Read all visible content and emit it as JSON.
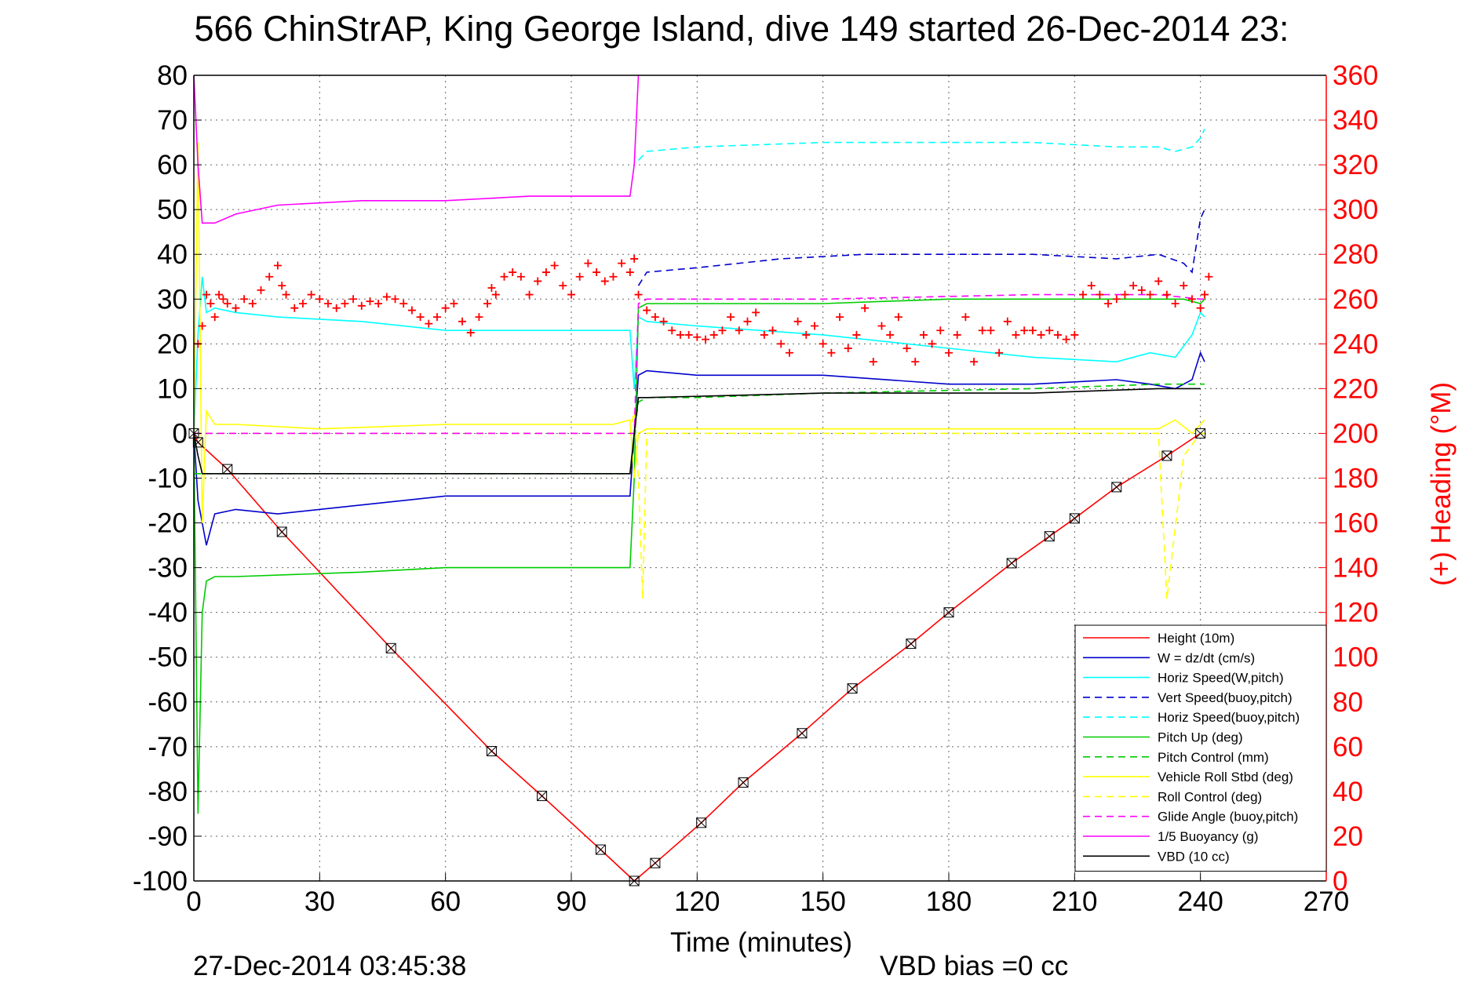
{
  "chart_data": {
    "type": "line",
    "title": "566 ChinStrAP, King George Island, dive 149 started 26-Dec-2014 23:",
    "xlabel": "Time (minutes)",
    "ylabel_right": "(+) Heading (°M)",
    "footer_date": "27-Dec-2014 03:45:38",
    "footer_bias": "VBD bias =0 cc",
    "xlim": [
      0,
      270
    ],
    "ylim": [
      -100,
      80
    ],
    "y2lim": [
      0,
      360
    ],
    "grid": true,
    "legend_position": "lower-right",
    "x_ticks": [
      "0",
      "30",
      "60",
      "90",
      "120",
      "150",
      "180",
      "210",
      "240",
      "270"
    ],
    "y_ticks": [
      "80",
      "70",
      "60",
      "50",
      "40",
      "30",
      "20",
      "10",
      "0",
      "-10",
      "-20",
      "-30",
      "-40",
      "-50",
      "-60",
      "-70",
      "-80",
      "-90",
      "-100"
    ],
    "y2_ticks": [
      "360",
      "340",
      "320",
      "300",
      "280",
      "260",
      "240",
      "220",
      "200",
      "180",
      "160",
      "140",
      "120",
      "100",
      "80",
      "60",
      "40",
      "20",
      "0"
    ],
    "colors": {
      "right_axis": "#ff0000"
    },
    "series": [
      {
        "name": "Height (10m)",
        "color": "#ff0000",
        "style": "solid",
        "x": [
          0,
          1,
          8,
          21,
          47,
          71,
          83,
          97,
          105,
          110,
          121,
          131,
          145,
          157,
          171,
          180,
          195,
          204,
          210,
          220,
          232,
          240
        ],
        "y": [
          0,
          -2,
          -8,
          -22,
          -48,
          -71,
          -81,
          -93,
          -100,
          -96,
          -87,
          -78,
          -67,
          -57,
          -47,
          -40,
          -29,
          -23,
          -19,
          -12,
          -5,
          0
        ]
      },
      {
        "name": "W = dz/dt (cm/s)",
        "color": "#0000cc",
        "style": "solid",
        "x": [
          0,
          1,
          2,
          3,
          5,
          10,
          20,
          40,
          60,
          80,
          104,
          105,
          106,
          108,
          120,
          150,
          180,
          200,
          220,
          228,
          234,
          238,
          240,
          241
        ],
        "y": [
          0,
          -15,
          -20,
          -25,
          -18,
          -17,
          -18,
          -16,
          -14,
          -14,
          -14,
          0,
          13,
          14,
          13,
          13,
          11,
          11,
          12,
          11,
          10,
          12,
          18,
          16
        ]
      },
      {
        "name": "Horiz Speed(W,pitch)",
        "color": "#00ffff",
        "style": "solid",
        "x": [
          0,
          1,
          2,
          3,
          5,
          10,
          20,
          40,
          60,
          80,
          104,
          105,
          106,
          108,
          120,
          150,
          180,
          200,
          220,
          228,
          234,
          238,
          240,
          241
        ],
        "y": [
          0,
          22,
          35,
          27,
          28,
          27,
          26,
          25,
          23,
          23,
          23,
          10,
          26,
          25,
          24,
          22,
          19,
          17,
          16,
          18,
          17,
          22,
          27,
          26
        ]
      },
      {
        "name": "Vert Speed(buoy,pitch)",
        "color": "#0000cc",
        "style": "dashed",
        "x": [
          106,
          108,
          120,
          140,
          160,
          180,
          200,
          220,
          230,
          236,
          238,
          240,
          241
        ],
        "y": [
          33,
          36,
          37,
          39,
          40,
          40,
          40,
          39,
          40,
          38,
          36,
          48,
          50
        ]
      },
      {
        "name": "Horiz Speed(buoy,pitch)",
        "color": "#00ffff",
        "style": "dashed",
        "x": [
          106,
          108,
          120,
          150,
          180,
          200,
          220,
          230,
          234,
          238,
          240,
          241
        ],
        "y": [
          61,
          63,
          64,
          65,
          65,
          65,
          64,
          64,
          63,
          64,
          66,
          68
        ]
      },
      {
        "name": "Pitch Up (deg)",
        "color": "#00cc00",
        "style": "solid",
        "x": [
          0,
          1,
          2,
          3,
          5,
          10,
          40,
          60,
          80,
          104,
          105,
          106,
          108,
          120,
          150,
          180,
          200,
          220,
          230,
          236,
          240,
          241
        ],
        "y": [
          0,
          -85,
          -40,
          -33,
          -32,
          -32,
          -31,
          -30,
          -30,
          -30,
          -10,
          28,
          29,
          29,
          29,
          30,
          30,
          30,
          30,
          30,
          29,
          30
        ]
      },
      {
        "name": "Pitch Control (mm)",
        "color": "#00cc00",
        "style": "dashed",
        "x": [
          0,
          3,
          10,
          60,
          104,
          105,
          106,
          108,
          120,
          150,
          200,
          230,
          240,
          241
        ],
        "y": [
          -9,
          -9,
          -9,
          -9,
          -9,
          0,
          7,
          8,
          8,
          9,
          10,
          11,
          11,
          11
        ]
      },
      {
        "name": "Vehicle Roll Stbd (deg)",
        "color": "#ffff00",
        "style": "solid",
        "x": [
          0,
          1,
          2,
          3,
          5,
          10,
          30,
          60,
          100,
          104,
          105,
          106,
          108,
          120,
          150,
          200,
          230,
          234,
          238,
          240,
          241
        ],
        "y": [
          0,
          65,
          -20,
          5,
          2,
          2,
          1,
          2,
          2,
          3,
          -10,
          0,
          1,
          1,
          1,
          1,
          1,
          3,
          0,
          2,
          3
        ]
      },
      {
        "name": "Roll Control (deg)",
        "color": "#ffff00",
        "style": "dashed",
        "x": [
          0,
          3,
          104,
          105,
          106,
          107,
          108,
          120,
          160,
          200,
          230,
          232,
          236,
          240,
          241
        ],
        "y": [
          0,
          0,
          0,
          5,
          -10,
          -37,
          0,
          0,
          0,
          0,
          0,
          -37,
          -5,
          0,
          0
        ]
      },
      {
        "name": "Glide Angle (buoy,pitch)",
        "color": "#ff00ff",
        "style": "dashed",
        "x": [
          0,
          105,
          106,
          108,
          150,
          200,
          230,
          240,
          241
        ],
        "y": [
          0,
          0,
          29,
          30,
          30,
          31,
          31,
          30,
          30
        ]
      },
      {
        "name": "1/5 Buoyancy (g)",
        "color": "#ff00ff",
        "style": "solid",
        "x": [
          0,
          1,
          2,
          5,
          10,
          20,
          40,
          60,
          80,
          104,
          105,
          106
        ],
        "y": [
          80,
          60,
          47,
          47,
          49,
          51,
          52,
          52,
          53,
          53,
          60,
          80
        ]
      },
      {
        "name": "VBD (10 cc)",
        "color": "#000000",
        "style": "solid",
        "x": [
          0,
          1,
          2,
          3,
          10,
          60,
          104,
          105,
          106,
          108,
          150,
          200,
          230,
          240
        ],
        "y": [
          0,
          -5,
          -9,
          -9,
          -9,
          -9,
          -9,
          0,
          8,
          8,
          9,
          9,
          10,
          10
        ]
      }
    ],
    "heading": {
      "label": "heading",
      "color": "#ff0000",
      "marker": "+",
      "axis": "right",
      "x": [
        1,
        2,
        3,
        4,
        5,
        6,
        7,
        8,
        10,
        12,
        14,
        16,
        18,
        20,
        21,
        22,
        24,
        26,
        28,
        30,
        32,
        34,
        36,
        38,
        40,
        42,
        44,
        46,
        48,
        50,
        52,
        54,
        56,
        58,
        60,
        62,
        64,
        66,
        68,
        70,
        71,
        72,
        74,
        76,
        78,
        80,
        82,
        84,
        86,
        88,
        90,
        92,
        94,
        96,
        98,
        100,
        102,
        104,
        105,
        106,
        108,
        110,
        112,
        114,
        116,
        118,
        120,
        122,
        124,
        126,
        128,
        130,
        132,
        134,
        136,
        138,
        140,
        142,
        144,
        146,
        148,
        150,
        152,
        154,
        156,
        158,
        160,
        162,
        164,
        166,
        168,
        170,
        172,
        174,
        176,
        178,
        180,
        182,
        184,
        186,
        188,
        190,
        192,
        194,
        196,
        198,
        200,
        202,
        204,
        206,
        208,
        210,
        212,
        214,
        216,
        218,
        220,
        222,
        224,
        226,
        228,
        230,
        232,
        234,
        236,
        238,
        240,
        241,
        242
      ],
      "y": [
        240,
        248,
        262,
        258,
        252,
        262,
        260,
        258,
        256,
        260,
        258,
        264,
        270,
        275,
        266,
        262,
        256,
        258,
        262,
        260,
        258,
        256,
        258,
        260,
        257,
        259,
        258,
        261,
        260,
        258,
        255,
        252,
        249,
        252,
        256,
        258,
        250,
        245,
        252,
        258,
        265,
        262,
        270,
        272,
        270,
        262,
        268,
        272,
        275,
        266,
        262,
        270,
        276,
        272,
        268,
        270,
        276,
        272,
        278,
        262,
        255,
        252,
        250,
        246,
        244,
        244,
        243,
        242,
        244,
        246,
        252,
        246,
        250,
        254,
        244,
        246,
        240,
        236,
        250,
        244,
        248,
        240,
        236,
        252,
        238,
        244,
        256,
        232,
        248,
        244,
        252,
        238,
        232,
        244,
        240,
        246,
        236,
        244,
        252,
        232,
        246,
        246,
        236,
        250,
        244,
        246,
        246,
        244,
        246,
        244,
        242,
        244,
        262,
        266,
        262,
        258,
        260,
        262,
        266,
        264,
        262,
        268,
        262,
        258,
        266,
        260,
        256,
        262,
        270
      ]
    }
  }
}
